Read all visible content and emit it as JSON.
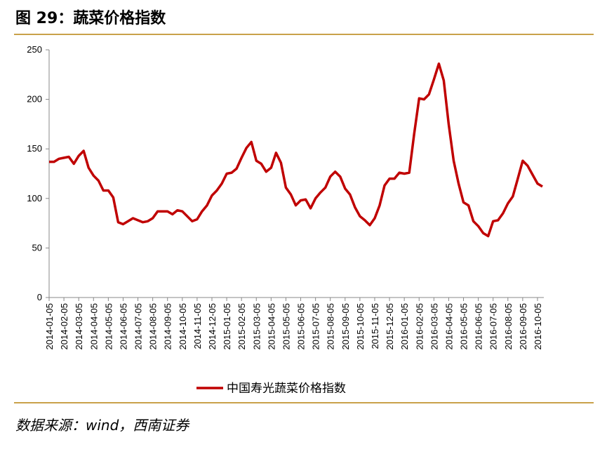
{
  "title": "图 29：蔬菜价格指数",
  "source": "数据来源：wind，西南证券",
  "chart_data": {
    "type": "line",
    "categories": [
      "2014-01-05",
      null,
      null,
      "2014-02-05",
      null,
      null,
      "2014-03-05",
      null,
      null,
      "2014-04-05",
      null,
      null,
      "2014-05-05",
      null,
      null,
      "2014-06-05",
      null,
      null,
      "2014-07-05",
      null,
      null,
      "2014-08-05",
      null,
      null,
      "2014-09-05",
      null,
      null,
      "2014-10-05",
      null,
      null,
      "2014-11-05",
      null,
      null,
      "2014-12-05",
      null,
      null,
      "2015-01-05",
      null,
      null,
      "2015-02-05",
      null,
      null,
      "2015-03-05",
      null,
      null,
      "2015-04-05",
      null,
      null,
      "2015-05-05",
      null,
      null,
      "2015-06-05",
      null,
      null,
      "2015-07-05",
      null,
      null,
      "2015-08-05",
      null,
      null,
      "2015-09-05",
      null,
      null,
      "2015-10-05",
      null,
      null,
      "2015-11-05",
      null,
      null,
      "2015-12-05",
      null,
      null,
      "2016-01-05",
      null,
      null,
      "2016-02-05",
      null,
      null,
      "2016-03-05",
      null,
      null,
      "2016-04-05",
      null,
      null,
      "2016-05-05",
      null,
      null,
      "2016-06-05",
      null,
      null,
      "2016-07-05",
      null,
      null,
      "2016-08-05",
      null,
      null,
      "2016-09-05",
      null,
      null,
      "2016-10-05",
      null
    ],
    "series": [
      {
        "name": "中国寿光蔬菜价格指数",
        "color": "#c00000",
        "values": [
          137,
          137,
          140,
          141,
          142,
          135,
          143,
          148,
          131,
          123,
          118,
          108,
          108,
          101,
          76,
          74,
          77,
          80,
          78,
          76,
          77,
          80,
          87,
          87,
          87,
          84,
          88,
          87,
          82,
          77,
          79,
          87,
          93,
          103,
          108,
          115,
          125,
          126,
          130,
          141,
          151,
          157,
          138,
          135,
          127,
          131,
          146,
          136,
          111,
          104,
          93,
          98,
          99,
          90,
          100,
          106,
          111,
          122,
          127,
          122,
          110,
          104,
          91,
          82,
          78,
          73,
          80,
          93,
          113,
          120,
          120,
          126,
          125,
          126,
          165,
          201,
          200,
          205,
          220,
          236,
          219,
          175,
          138,
          115,
          96,
          93,
          77,
          72,
          65,
          62,
          77,
          78,
          85,
          95,
          102,
          120,
          138,
          133,
          124,
          115,
          112
        ]
      }
    ],
    "ylim": [
      0,
      250
    ],
    "yticks": [
      0,
      50,
      100,
      150,
      200,
      250
    ],
    "grid": false,
    "legend": "bottom"
  }
}
